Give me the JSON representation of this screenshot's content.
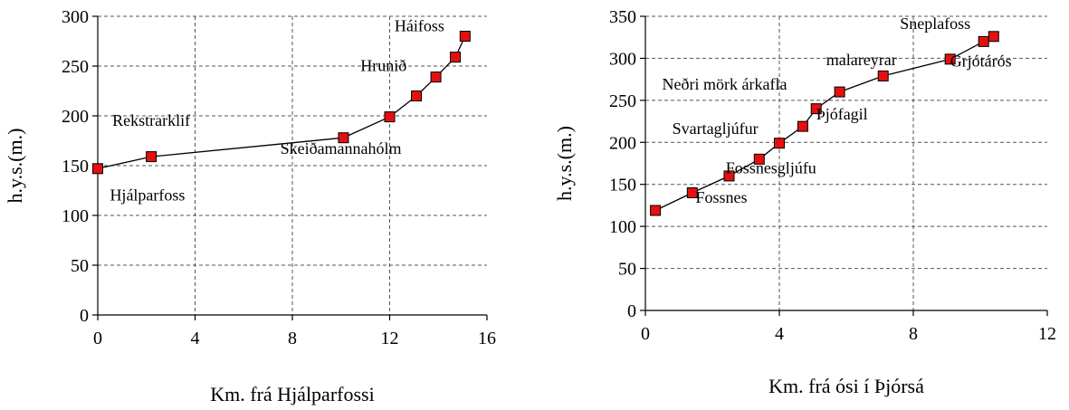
{
  "chart_data": [
    {
      "type": "line",
      "xlabel": "Km. frá Hjálparfossi",
      "ylabel": "h.y.s.(m.)",
      "xlim": [
        0,
        16
      ],
      "ylim": [
        0,
        300
      ],
      "x_ticks": [
        "0",
        "4",
        "8",
        "12",
        "16"
      ],
      "y_ticks": [
        "0",
        "50",
        "100",
        "150",
        "200",
        "250",
        "300"
      ],
      "grid": "dashed, both axes",
      "marker": "square",
      "marker_color": "#e41010",
      "line_color": "#000000",
      "series": [
        {
          "x": [
            0,
            2.2,
            10.1,
            12.0,
            13.1,
            13.9,
            14.7,
            15.1
          ],
          "y": [
            147,
            159,
            178,
            199,
            220,
            239,
            259,
            280
          ]
        }
      ],
      "annotations": [
        {
          "text": "Hjálparfoss",
          "x": 0.5,
          "y": 115
        },
        {
          "text": "Rekstrarklif",
          "x": 0.6,
          "y": 190
        },
        {
          "text": "Skeiðamannahólm",
          "x": 7.5,
          "y": 162
        },
        {
          "text": "Hrunið",
          "x": 10.8,
          "y": 245
        },
        {
          "text": "Háifoss",
          "x": 12.2,
          "y": 285
        }
      ]
    },
    {
      "type": "line",
      "xlabel": "Km. frá ósi í Þjórsá",
      "ylabel": "h.y.s.(m.)",
      "xlim": [
        0,
        12
      ],
      "ylim": [
        0,
        350
      ],
      "x_ticks": [
        "0",
        "4",
        "8",
        "12"
      ],
      "y_ticks": [
        "0",
        "50",
        "100",
        "150",
        "200",
        "250",
        "300",
        "350"
      ],
      "grid": "dashed, both axes",
      "marker": "square",
      "marker_color": "#e41010",
      "line_color": "#000000",
      "series": [
        {
          "x": [
            0.3,
            1.4,
            2.5,
            3.4,
            4.0,
            4.7,
            5.1,
            5.8,
            7.1,
            9.1,
            10.1,
            10.4
          ],
          "y": [
            119,
            140,
            160,
            180,
            199,
            219,
            240,
            260,
            279,
            299,
            320,
            326
          ]
        }
      ],
      "annotations": [
        {
          "text": "Fossnes",
          "x": 1.5,
          "y": 128
        },
        {
          "text": "Fossnesgljúfu",
          "x": 2.4,
          "y": 163
        },
        {
          "text": "Svartagljúfur",
          "x": 0.8,
          "y": 210
        },
        {
          "text": "Þjófagil",
          "x": 5.1,
          "y": 227
        },
        {
          "text": "Neðri mörk árkafla",
          "x": 0.5,
          "y": 263
        },
        {
          "text": "malareyrar",
          "x": 5.4,
          "y": 292
        },
        {
          "text": "Grjótárós",
          "x": 9.1,
          "y": 290
        },
        {
          "text": "Sneplafoss",
          "x": 7.6,
          "y": 335
        }
      ]
    }
  ]
}
